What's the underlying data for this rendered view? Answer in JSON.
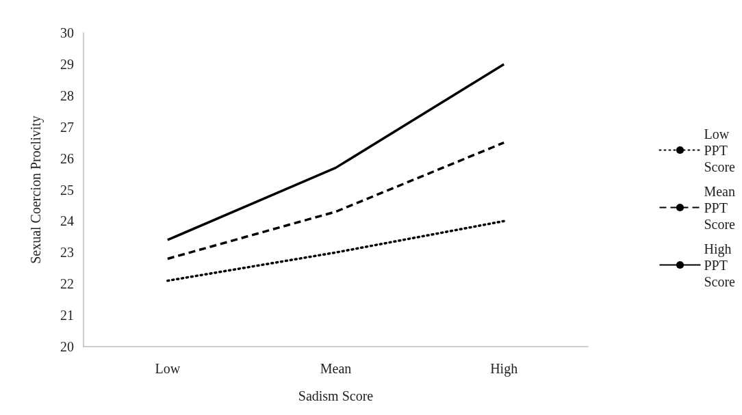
{
  "chart_data": {
    "type": "line",
    "xlabel": "Sadism Score",
    "ylabel": "Sexual Coercion Proclivity",
    "categories": [
      "Low",
      "Mean",
      "High"
    ],
    "series": [
      {
        "name": "Low PPT Score",
        "color": "#000000",
        "line_style": "dotted",
        "values": [
          22.1,
          23.0,
          24.0
        ]
      },
      {
        "name": "Mean PPT Score",
        "color": "#000000",
        "line_style": "dashed",
        "values": [
          22.8,
          24.3,
          26.5
        ]
      },
      {
        "name": "High PPT Score",
        "color": "#000000",
        "line_style": "solid",
        "values": [
          23.4,
          25.7,
          29.0
        ]
      }
    ],
    "ylim": [
      20,
      30
    ],
    "yticks": [
      20,
      21,
      22,
      23,
      24,
      25,
      26,
      27,
      28,
      29,
      30
    ],
    "grid": false,
    "legend": "right",
    "marker": "none"
  }
}
